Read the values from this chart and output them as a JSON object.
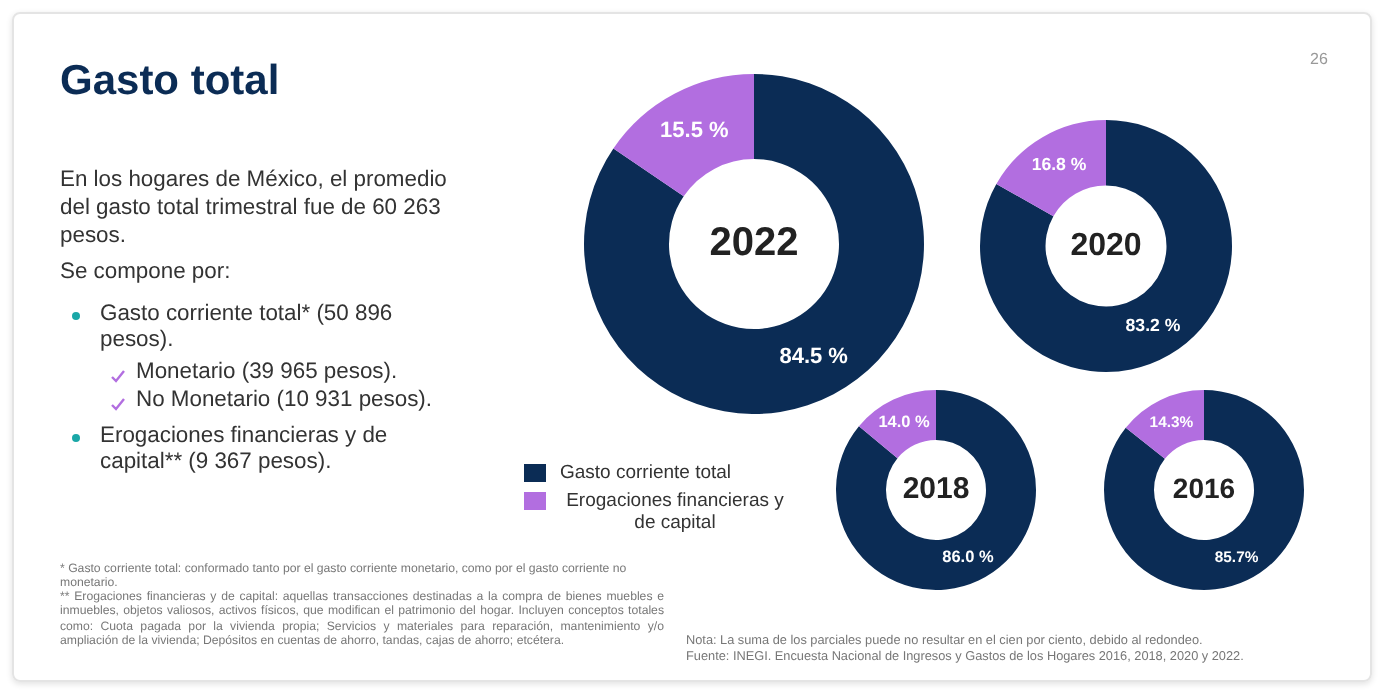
{
  "chart_data": [
    {
      "type": "donut",
      "title": "2022",
      "categories": [
        "Gasto corriente total",
        "Erogaciones financieras y de capital"
      ],
      "values": [
        84.5,
        15.5
      ],
      "colors": [
        "#0b2c55",
        "#b26ee0"
      ],
      "data_labels": true,
      "value_labels": [
        "84.5 %",
        "15.5 %"
      ],
      "legend": "left",
      "annotations": [
        "Gasto total",
        "26",
        "En los hogares de México, el promedio del gasto total trimestral fue de 60 263 pesos.",
        "Se compone por:",
        "Gasto corriente total* (50 896 pesos).",
        "Monetario (39 965 pesos).",
        "No Monetario (10 931 pesos).",
        "Erogaciones financieras y de capital** (9 367 pesos).",
        "* Gasto corriente total: conformado tanto por el gasto corriente monetario, como por el gasto corriente no monetario.",
        "** Erogaciones financieras y de capital: aquellas transacciones destinadas a la compra de bienes muebles e inmuebles, objetos valiosos, activos físicos, que modifican el patrimonio del hogar. Incluyen conceptos totales como: Cuota pagada por la vivienda propia; Servicios y materiales para reparación, mantenimiento y/o ampliación de la vivienda; Depósitos en cuentas de ahorro, tandas, cajas de ahorro; etcétera.",
        "Nota: La suma de los parciales puede no resultar en el cien por ciento, debido al redondeo.",
        "Fuente: INEGI. Encuesta Nacional de Ingresos y Gastos de los Hogares 2016, 2018, 2020 y 2022."
      ]
    },
    {
      "type": "donut",
      "title": "2020",
      "categories": [
        null,
        null
      ],
      "values": [
        83.2,
        16.8
      ],
      "colors": [
        "#0b2c55",
        "#b26ee0"
      ],
      "data_labels": true,
      "value_labels": [
        "83.2 %",
        "16.8 %"
      ]
    },
    {
      "type": "donut",
      "title": "2018",
      "categories": [
        null,
        null
      ],
      "values": [
        86.0,
        14.0
      ],
      "colors": [
        "#0b2c55",
        "#b26ee0"
      ],
      "data_labels": true,
      "value_labels": [
        "86.0 %",
        "14.0 %"
      ]
    },
    {
      "type": "donut",
      "title": "2016",
      "categories": [
        null,
        null
      ],
      "values": [
        85.7,
        14.3
      ],
      "colors": [
        "#0b2c55",
        "#b26ee0"
      ],
      "data_labels": true,
      "value_labels": [
        "85.7%",
        "14.3%"
      ]
    }
  ]
}
